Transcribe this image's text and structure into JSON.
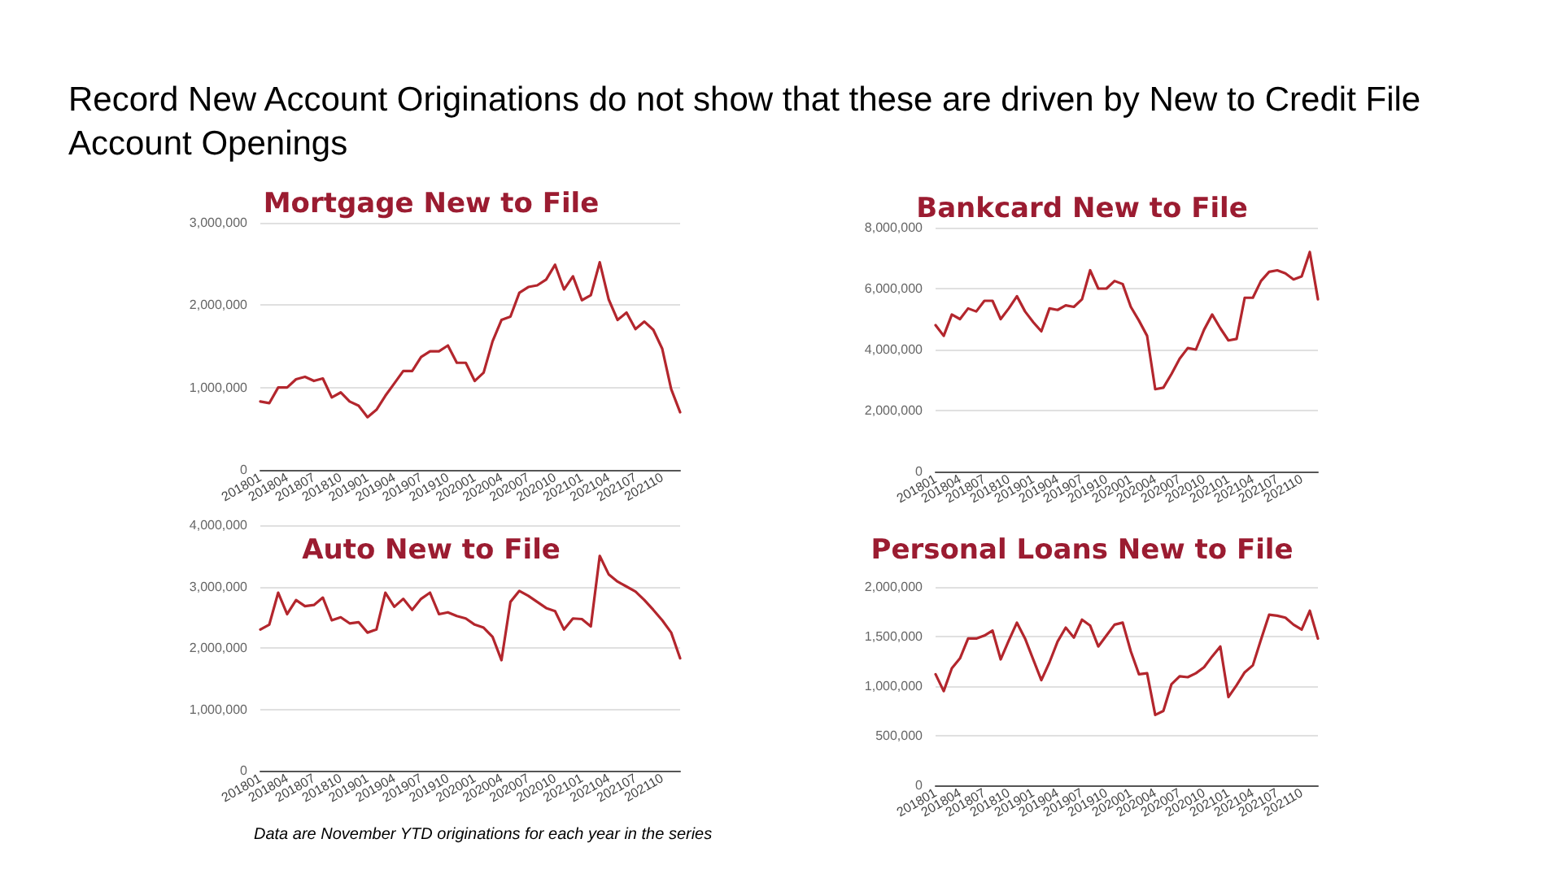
{
  "chart_data": [
    {
      "type": "other",
      "title": "Record New Account Originations do not show that these are driven by New to Credit File Account Openings",
      "annotations": [
        "Data are November YTD originations for each year in the series"
      ]
    },
    {
      "type": "line",
      "title": "Mortgage New to File",
      "categories": [
        "201801",
        null,
        null,
        "201804",
        null,
        null,
        "201807",
        null,
        null,
        "201810",
        null,
        null,
        "201901",
        null,
        null,
        "201904",
        null,
        null,
        "201907",
        null,
        null,
        "201910",
        null,
        null,
        "202001",
        null,
        null,
        "202004",
        null,
        null,
        "202007",
        null,
        null,
        "202010",
        null,
        null,
        "202101",
        null,
        null,
        "202104",
        null,
        null,
        "202107",
        null,
        null,
        "202110",
        null,
        null
      ],
      "series": [
        {
          "color": "#b3262d",
          "values": [
            830000,
            810000,
            1000000,
            1000000,
            1100000,
            1130000,
            1080000,
            1110000,
            880000,
            940000,
            830000,
            780000,
            640000,
            730000,
            900000,
            1050000,
            1200000,
            1200000,
            1370000,
            1440000,
            1440000,
            1510000,
            1300000,
            1300000,
            1080000,
            1180000,
            1560000,
            1820000,
            1860000,
            2150000,
            2220000,
            2240000,
            2310000,
            2490000,
            2190000,
            2350000,
            2060000,
            2120000,
            2520000,
            2070000,
            1820000,
            1910000,
            1710000,
            1800000,
            1700000,
            1470000,
            980000,
            700000
          ]
        }
      ],
      "ylim": [
        0,
        3000000
      ],
      "yticks": [
        {
          "value": 0,
          "label": "0"
        },
        {
          "value": 1000000,
          "label": "1,000,000"
        },
        {
          "value": 2000000,
          "label": "2,000,000"
        },
        {
          "value": 3000000,
          "label": "3,000,000"
        }
      ],
      "grid": "y",
      "marker": "none"
    },
    {
      "type": "line",
      "title": "Bankcard New to File",
      "categories": [
        "201801",
        null,
        null,
        "201804",
        null,
        null,
        "201807",
        null,
        null,
        "201810",
        null,
        null,
        "201901",
        null,
        null,
        "201904",
        null,
        null,
        "201907",
        null,
        null,
        "201910",
        null,
        null,
        "202001",
        null,
        null,
        "202004",
        null,
        null,
        "202007",
        null,
        null,
        "202010",
        null,
        null,
        "202101",
        null,
        null,
        "202104",
        null,
        null,
        "202107",
        null,
        null,
        "202110",
        null,
        null
      ],
      "series": [
        {
          "color": "#b3262d",
          "values": [
            4800000,
            4450000,
            5150000,
            5000000,
            5350000,
            5250000,
            5600000,
            5600000,
            5000000,
            5350000,
            5750000,
            5250000,
            4900000,
            4600000,
            5350000,
            5300000,
            5450000,
            5400000,
            5650000,
            6600000,
            6000000,
            6000000,
            6250000,
            6150000,
            5400000,
            4950000,
            4450000,
            2700000,
            2750000,
            3200000,
            3700000,
            4050000,
            4000000,
            4650000,
            5150000,
            4700000,
            4300000,
            4350000,
            5700000,
            5700000,
            6250000,
            6550000,
            6600000,
            6500000,
            6300000,
            6400000,
            7200000,
            5650000
          ]
        }
      ],
      "ylim": [
        0,
        8000000
      ],
      "yticks": [
        {
          "value": 0,
          "label": "0"
        },
        {
          "value": 2000000,
          "label": "2,000,000"
        },
        {
          "value": 4000000,
          "label": "4,000,000"
        },
        {
          "value": 6000000,
          "label": "6,000,000"
        },
        {
          "value": 8000000,
          "label": "8,000,000"
        }
      ],
      "grid": "y",
      "marker": "none"
    },
    {
      "type": "line",
      "title": "Auto New to File",
      "categories": [
        "201801",
        null,
        null,
        "201804",
        null,
        null,
        "201807",
        null,
        null,
        "201810",
        null,
        null,
        "201901",
        null,
        null,
        "201904",
        null,
        null,
        "201907",
        null,
        null,
        "201910",
        null,
        null,
        "202001",
        null,
        null,
        "202004",
        null,
        null,
        "202007",
        null,
        null,
        "202010",
        null,
        null,
        "202101",
        null,
        null,
        "202104",
        null,
        null,
        "202107",
        null,
        null,
        "202110",
        null,
        null
      ],
      "series": [
        {
          "color": "#b3262d",
          "values": [
            2300000,
            2380000,
            2900000,
            2550000,
            2780000,
            2680000,
            2700000,
            2820000,
            2450000,
            2500000,
            2400000,
            2420000,
            2250000,
            2300000,
            2900000,
            2670000,
            2800000,
            2620000,
            2800000,
            2900000,
            2550000,
            2580000,
            2520000,
            2480000,
            2380000,
            2330000,
            2180000,
            1800000,
            2750000,
            2930000,
            2850000,
            2750000,
            2650000,
            2600000,
            2300000,
            2480000,
            2470000,
            2350000,
            3500000,
            3200000,
            3080000,
            3000000,
            2920000,
            2780000,
            2620000,
            2450000,
            2250000,
            1830000
          ]
        }
      ],
      "ylim": [
        0,
        4000000
      ],
      "yticks": [
        {
          "value": 0,
          "label": "0"
        },
        {
          "value": 1000000,
          "label": "1,000,000"
        },
        {
          "value": 2000000,
          "label": "2,000,000"
        },
        {
          "value": 3000000,
          "label": "3,000,000"
        },
        {
          "value": 4000000,
          "label": "4,000,000"
        }
      ],
      "grid": "y",
      "marker": "none"
    },
    {
      "type": "line",
      "title": "Personal Loans New to File",
      "categories": [
        "201801",
        null,
        null,
        "201804",
        null,
        null,
        "201807",
        null,
        null,
        "201810",
        null,
        null,
        "201901",
        null,
        null,
        "201904",
        null,
        null,
        "201907",
        null,
        null,
        "201910",
        null,
        null,
        "202001",
        null,
        null,
        "202004",
        null,
        null,
        "202007",
        null,
        null,
        "202010",
        null,
        null,
        "202101",
        null,
        null,
        "202104",
        null,
        null,
        "202107",
        null,
        null,
        "202110",
        null,
        null
      ],
      "series": [
        {
          "color": "#b3262d",
          "values": [
            1120000,
            950000,
            1180000,
            1280000,
            1480000,
            1480000,
            1510000,
            1560000,
            1270000,
            1460000,
            1640000,
            1480000,
            1270000,
            1060000,
            1240000,
            1450000,
            1590000,
            1490000,
            1670000,
            1610000,
            1400000,
            1510000,
            1620000,
            1640000,
            1350000,
            1120000,
            1130000,
            710000,
            750000,
            1020000,
            1100000,
            1090000,
            1130000,
            1190000,
            1300000,
            1400000,
            890000,
            1010000,
            1140000,
            1210000,
            1470000,
            1720000,
            1710000,
            1690000,
            1620000,
            1570000,
            1760000,
            1480000
          ]
        }
      ],
      "ylim": [
        0,
        2000000
      ],
      "yticks": [
        {
          "value": 0,
          "label": "0"
        },
        {
          "value": 500000,
          "label": "500,000"
        },
        {
          "value": 1000000,
          "label": "1,000,000"
        },
        {
          "value": 1500000,
          "label": "1,500,000"
        },
        {
          "value": 2000000,
          "label": "2,000,000"
        }
      ],
      "grid": "y",
      "marker": "none"
    }
  ]
}
